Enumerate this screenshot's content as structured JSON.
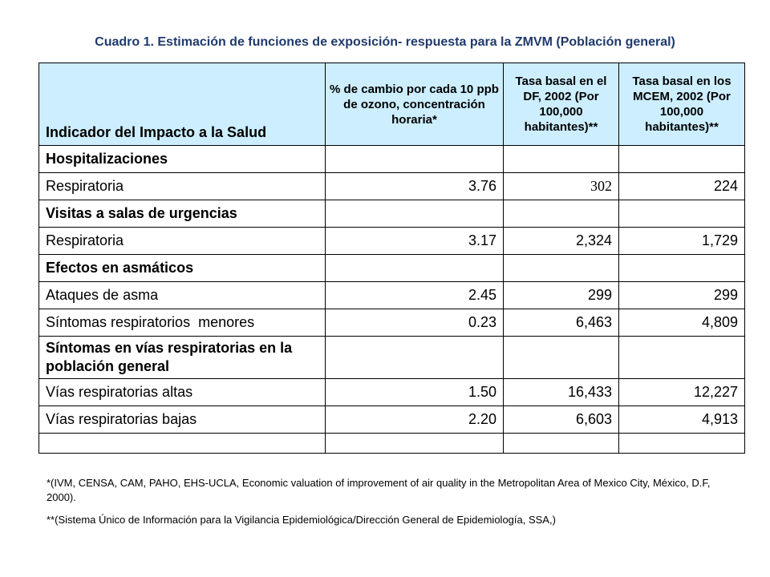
{
  "title": "Cuadro 1. Estimación de funciones de exposición- respuesta para la ZMVM (Población general)",
  "table": {
    "headers": [
      "Indicador del Impacto a la Salud",
      "% de cambio por cada 10 ppb de ozono, concentración horaria*",
      "Tasa basal en el DF, 2002 (Por 100,000 habitantes)**",
      "Tasa basal en los MCEM, 2002 (Por 100,000 habitantes)**"
    ],
    "rows": [
      {
        "label": "Hospitalizaciones",
        "pct": "",
        "df": "",
        "mcem": ""
      },
      {
        "label": "Respiratoria",
        "pct": "3.76",
        "df": "302",
        "mcem": "224"
      },
      {
        "label": "Visitas a salas de urgencias",
        "pct": "",
        "df": "",
        "mcem": ""
      },
      {
        "label": "Respiratoria",
        "pct": "3.17",
        "df": "2,324",
        "mcem": "1,729"
      },
      {
        "label": "Efectos en asmáticos",
        "pct": "",
        "df": "",
        "mcem": ""
      },
      {
        "label": "Ataques de asma",
        "pct": "2.45",
        "df": "299",
        "mcem": "299"
      },
      {
        "label": "Síntomas respiratorios  menores",
        "pct": "0.23",
        "df": "6,463",
        "mcem": "4,809"
      },
      {
        "label": "Síntomas en vías respiratorias en la población general",
        "pct": "",
        "df": "",
        "mcem": ""
      },
      {
        "label": "Vías respiratorias altas",
        "pct": "1.50",
        "df": "16,433",
        "mcem": "12,227"
      },
      {
        "label": "Vías respiratorias bajas",
        "pct": "2.20",
        "df": "6,603",
        "mcem": "4,913"
      },
      {
        "label": "",
        "pct": "",
        "df": "",
        "mcem": ""
      }
    ]
  },
  "footnotes": [
    "*(IVM, CENSA, CAM, PAHO, EHS-UCLA, Economic valuation of improvement of air quality in the Metropolitan Area of Mexico City, México, D.F, 2000).",
    "**(Sistema Único de Información para la Vigilancia Epidemiológica/Dirección General de Epidemiología, SSA,)"
  ],
  "colors": {
    "header_background": "#cceeff",
    "title_color": "#1f3a6e"
  }
}
